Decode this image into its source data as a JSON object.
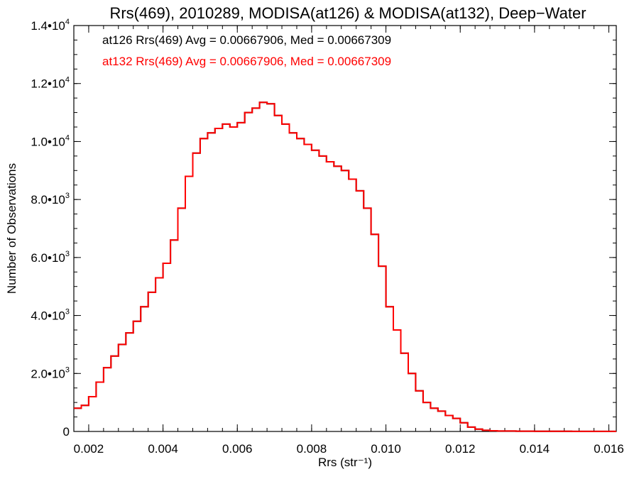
{
  "chart_data": {
    "type": "line",
    "title": "Rrs(469), 2010289, MODISA(at126) & MODISA(at132), Deep−Water",
    "xlabel": "Rrs (str⁻¹)",
    "ylabel": "Number of Observations",
    "xlim": [
      0.0016,
      0.0162
    ],
    "ylim": [
      0,
      14000
    ],
    "x_ticks": [
      "0.002",
      "0.004",
      "0.006",
      "0.008",
      "0.010",
      "0.012",
      "0.014",
      "0.016"
    ],
    "y_ticks": [
      {
        "mantissa": "0",
        "exp": ""
      },
      {
        "mantissa": "2.0•10",
        "exp": "3"
      },
      {
        "mantissa": "4.0•10",
        "exp": "3"
      },
      {
        "mantissa": "6.0•10",
        "exp": "3"
      },
      {
        "mantissa": "8.0•10",
        "exp": "3"
      },
      {
        "mantissa": "1.0•10",
        "exp": "4"
      },
      {
        "mantissa": "1.2•10",
        "exp": "4"
      },
      {
        "mantissa": "1.4•10",
        "exp": "4"
      }
    ],
    "annotations": [
      {
        "text": "at126 Rrs(469) Avg = 0.00667906, Med = 0.00667309",
        "color": "#000000"
      },
      {
        "text": "at132 Rrs(469) Avg = 0.00667906, Med = 0.00667309",
        "color": "#ff0000"
      }
    ],
    "series": [
      {
        "name": "at126",
        "color": "#000000",
        "x": [
          0.0016,
          0.0018,
          0.002,
          0.0022,
          0.0024,
          0.0026,
          0.0028,
          0.003,
          0.0032,
          0.0034,
          0.0036,
          0.0038,
          0.004,
          0.0042,
          0.0044,
          0.0046,
          0.0048,
          0.005,
          0.0052,
          0.0054,
          0.0056,
          0.0058,
          0.006,
          0.0062,
          0.0064,
          0.0066,
          0.0068,
          0.007,
          0.0072,
          0.0074,
          0.0076,
          0.0078,
          0.008,
          0.0082,
          0.0084,
          0.0086,
          0.0088,
          0.009,
          0.0092,
          0.0094,
          0.0096,
          0.0098,
          0.01,
          0.0102,
          0.0104,
          0.0106,
          0.0108,
          0.011,
          0.0112,
          0.0114,
          0.0116,
          0.0118,
          0.012,
          0.0122,
          0.0124,
          0.0126,
          0.0128,
          0.013,
          0.0135,
          0.014,
          0.015,
          0.016,
          0.0162
        ],
        "values": [
          800,
          900,
          1200,
          1700,
          2200,
          2600,
          3000,
          3400,
          3800,
          4300,
          4800,
          5300,
          5800,
          6600,
          7700,
          8800,
          9600,
          10100,
          10300,
          10450,
          10600,
          10500,
          10650,
          11000,
          11150,
          11350,
          11300,
          10900,
          10600,
          10300,
          10100,
          9900,
          9700,
          9500,
          9300,
          9150,
          9000,
          8700,
          8300,
          7700,
          6800,
          5700,
          4300,
          3500,
          2700,
          2000,
          1400,
          1000,
          800,
          700,
          550,
          450,
          300,
          150,
          80,
          40,
          25,
          15,
          10,
          5,
          3,
          2,
          2
        ]
      },
      {
        "name": "at132",
        "color": "#ff0000",
        "x": [
          0.0016,
          0.0018,
          0.002,
          0.0022,
          0.0024,
          0.0026,
          0.0028,
          0.003,
          0.0032,
          0.0034,
          0.0036,
          0.0038,
          0.004,
          0.0042,
          0.0044,
          0.0046,
          0.0048,
          0.005,
          0.0052,
          0.0054,
          0.0056,
          0.0058,
          0.006,
          0.0062,
          0.0064,
          0.0066,
          0.0068,
          0.007,
          0.0072,
          0.0074,
          0.0076,
          0.0078,
          0.008,
          0.0082,
          0.0084,
          0.0086,
          0.0088,
          0.009,
          0.0092,
          0.0094,
          0.0096,
          0.0098,
          0.01,
          0.0102,
          0.0104,
          0.0106,
          0.0108,
          0.011,
          0.0112,
          0.0114,
          0.0116,
          0.0118,
          0.012,
          0.0122,
          0.0124,
          0.0126,
          0.0128,
          0.013,
          0.0135,
          0.014,
          0.015,
          0.016,
          0.0162
        ],
        "values": [
          800,
          900,
          1200,
          1700,
          2200,
          2600,
          3000,
          3400,
          3800,
          4300,
          4800,
          5300,
          5800,
          6600,
          7700,
          8800,
          9600,
          10100,
          10300,
          10450,
          10600,
          10500,
          10650,
          11000,
          11150,
          11350,
          11300,
          10900,
          10600,
          10300,
          10100,
          9900,
          9700,
          9500,
          9300,
          9150,
          9000,
          8700,
          8300,
          7700,
          6800,
          5700,
          4300,
          3500,
          2700,
          2000,
          1400,
          1000,
          800,
          700,
          550,
          450,
          300,
          150,
          80,
          40,
          25,
          15,
          10,
          5,
          3,
          2,
          2
        ]
      }
    ],
    "grid": false
  }
}
